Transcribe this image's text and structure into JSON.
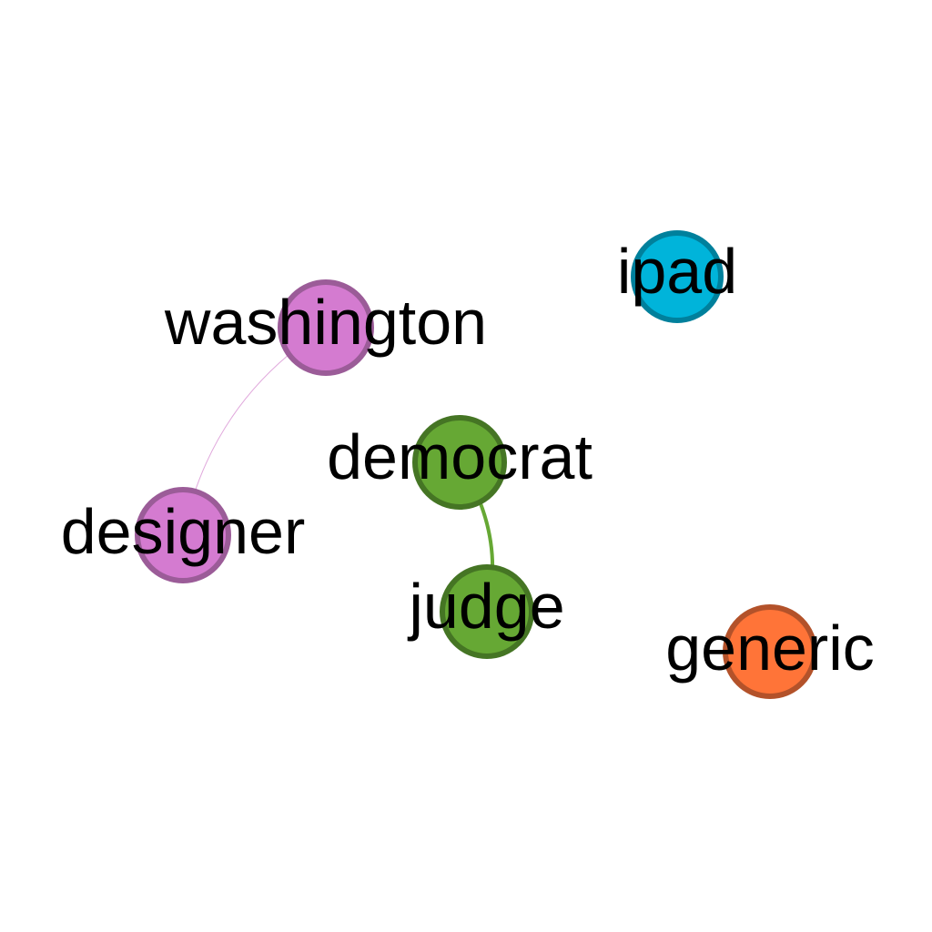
{
  "graph": {
    "nodes": [
      {
        "id": "washington",
        "label": "washington",
        "group": "pink",
        "fill": "#d47bd0",
        "stroke": "#9b5c98"
      },
      {
        "id": "designer",
        "label": "designer",
        "group": "pink",
        "fill": "#d47bd0",
        "stroke": "#9b5c98"
      },
      {
        "id": "ipad",
        "label": "ipad",
        "group": "cyan",
        "fill": "#00b4da",
        "stroke": "#00809c"
      },
      {
        "id": "democrat",
        "label": "democrat",
        "group": "green",
        "fill": "#66a834",
        "stroke": "#457524"
      },
      {
        "id": "judge",
        "label": "judge",
        "group": "green",
        "fill": "#66a834",
        "stroke": "#457524"
      },
      {
        "id": "generic",
        "label": "generic",
        "group": "orange",
        "fill": "#ff7438",
        "stroke": "#b3522a"
      }
    ],
    "edges": [
      {
        "source": "washington",
        "target": "designer",
        "color": "#e0a8dc",
        "weight": "thin"
      },
      {
        "source": "democrat",
        "target": "judge",
        "color": "#66a834",
        "weight": "medium"
      }
    ]
  }
}
